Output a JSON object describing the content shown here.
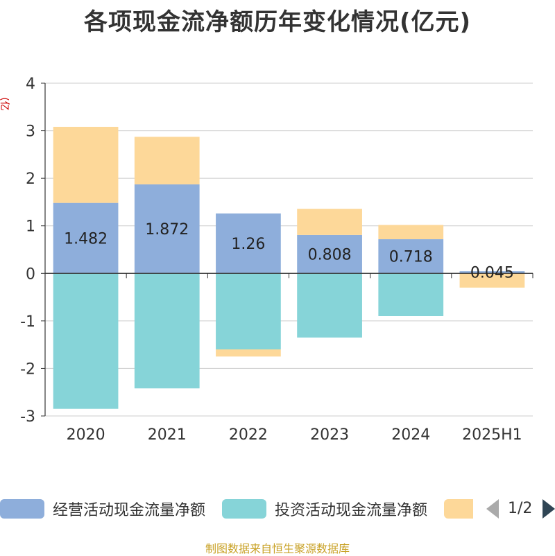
{
  "source_text": "制图数据来自恒生聚源数据库",
  "pager": {
    "text": "1/2",
    "prev_icon": "triangle-left-icon",
    "next_icon": "triangle-right-icon"
  },
  "chart_data": {
    "type": "bar",
    "stacked": true,
    "title": "各项现金流净额历年变化情况(亿元)",
    "unit_label": "(亿元)",
    "categories": [
      "2020",
      "2021",
      "2022",
      "2023",
      "2024",
      "2025H1"
    ],
    "ylim": [
      -3,
      4
    ],
    "yticks": [
      -3,
      -2,
      -1,
      0,
      1,
      2,
      3,
      4
    ],
    "grid": true,
    "legend_position": "bottom",
    "series": [
      {
        "name": "经营活动现金流量净额",
        "color": "#8eaedb",
        "values": [
          1.482,
          1.872,
          1.26,
          0.808,
          0.718,
          0.045
        ],
        "data_labels": [
          "1.482",
          "1.872",
          "1.26",
          "0.808",
          "0.718",
          "0.045"
        ]
      },
      {
        "name": "投资活动现金流量净额",
        "color": "#86d4d8",
        "values": [
          -2.85,
          -2.42,
          -1.6,
          -1.35,
          -0.9,
          0.0
        ]
      },
      {
        "name": "",
        "color": "#fdd899",
        "values": [
          1.6,
          1.0,
          -0.15,
          0.55,
          0.3,
          -0.3
        ]
      }
    ]
  }
}
